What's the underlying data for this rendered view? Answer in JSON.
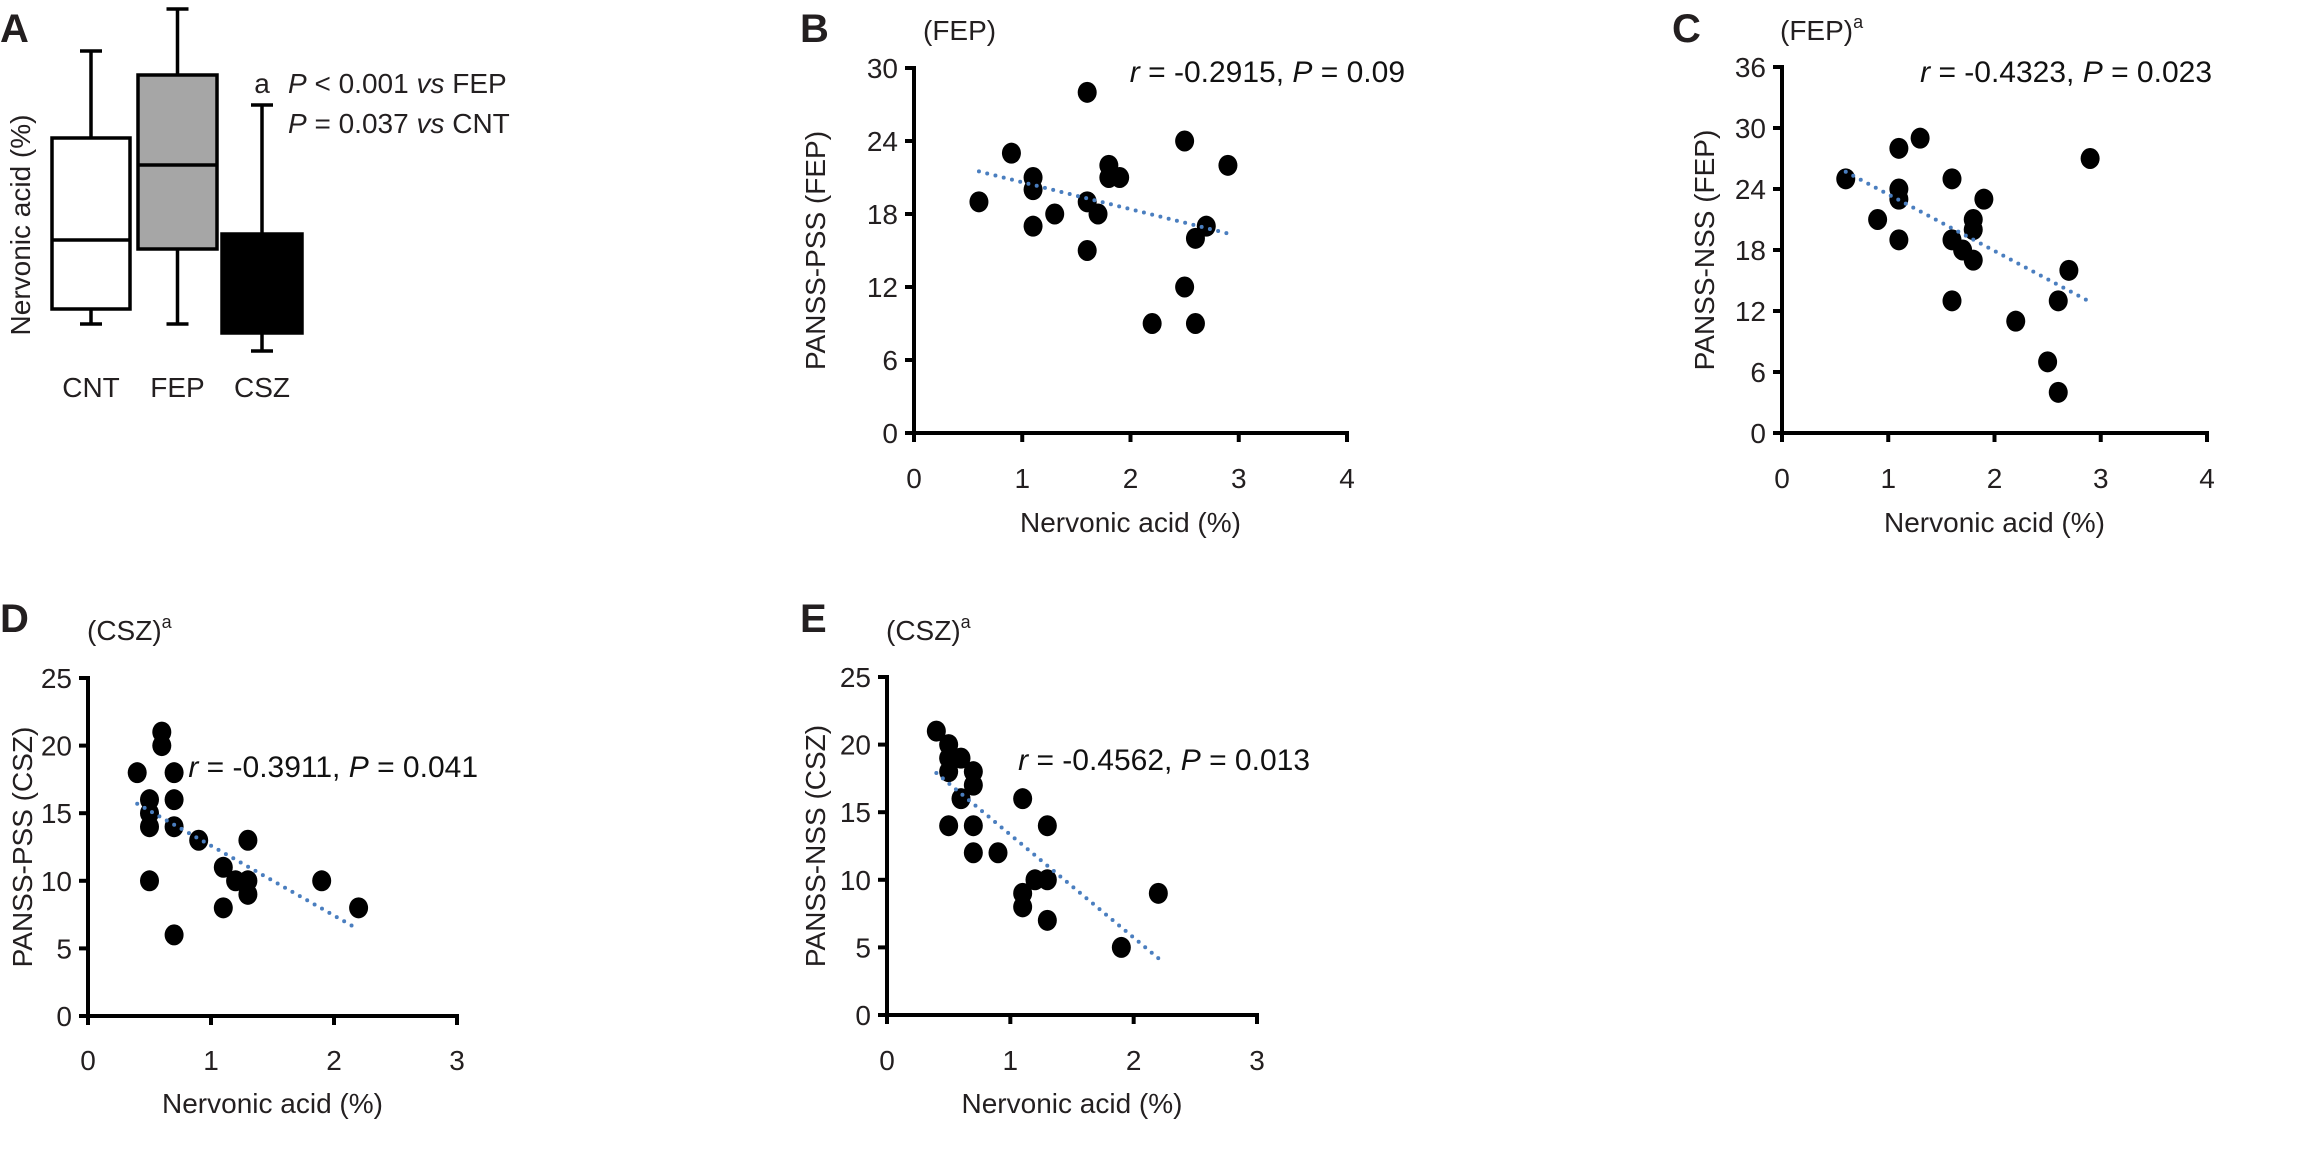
{
  "chart_data": [
    {
      "panel": "A",
      "type": "box",
      "ylabel": "Nervonic acid (%)",
      "categories": [
        "CNT",
        "FEP",
        "CSZ"
      ],
      "boxes": [
        {
          "name": "CNT",
          "min": 1.2,
          "q1": 1.7,
          "median": 4.0,
          "q3": 7.4,
          "max": 10.3,
          "fill": "#ffffff"
        },
        {
          "name": "FEP",
          "min": 1.2,
          "q1": 3.7,
          "median": 6.5,
          "q3": 9.5,
          "max": 11.7,
          "fill": "#a6a6a6"
        },
        {
          "name": "CSZ",
          "min": 0.3,
          "q1": 0.9,
          "median": 2.0,
          "q3": 4.2,
          "max": 8.5,
          "fill": "#000000"
        }
      ],
      "significance_mark": "a",
      "annotations": [
        [
          {
            "text": "P",
            "italic": true
          },
          {
            "text": " < 0.001 "
          },
          {
            "text": "vs",
            "italic": true
          },
          {
            "text": " FEP"
          }
        ],
        [
          {
            "text": "P",
            "italic": true
          },
          {
            "text": " = 0.037 "
          },
          {
            "text": "vs",
            "italic": true
          },
          {
            "text": " CNT"
          }
        ]
      ]
    },
    {
      "panel": "B",
      "type": "scatter",
      "title": "(FEP)",
      "title_sup": "",
      "xlabel": "Nervonic acid (%)",
      "ylabel": "PANSS-PSS (FEP)",
      "xlim": [
        0,
        4
      ],
      "ylim": [
        0,
        30
      ],
      "xticks": [
        0,
        1,
        2,
        3,
        4
      ],
      "yticks": [
        0,
        6,
        12,
        18,
        24,
        30
      ],
      "points": [
        [
          1.6,
          28
        ],
        [
          0.9,
          23
        ],
        [
          2.5,
          24
        ],
        [
          2.9,
          22
        ],
        [
          1.8,
          22
        ],
        [
          1.1,
          21
        ],
        [
          1.8,
          21
        ],
        [
          1.9,
          21
        ],
        [
          1.1,
          20
        ],
        [
          0.6,
          19
        ],
        [
          1.6,
          19
        ],
        [
          1.3,
          18
        ],
        [
          1.7,
          18
        ],
        [
          1.1,
          17
        ],
        [
          2.7,
          17
        ],
        [
          2.6,
          16
        ],
        [
          1.6,
          15
        ],
        [
          2.5,
          12
        ],
        [
          2.2,
          9
        ],
        [
          2.6,
          9
        ]
      ],
      "trendline": [
        [
          0.6,
          21.5
        ],
        [
          2.9,
          16.4
        ]
      ],
      "stats": [
        {
          "text": "r",
          "italic": true
        },
        {
          "text": " = -0.2915, "
        },
        {
          "text": "P",
          "italic": true
        },
        {
          "text": " = 0.09"
        }
      ]
    },
    {
      "panel": "C",
      "type": "scatter",
      "title": "(FEP)",
      "title_sup": "a",
      "xlabel": "Nervonic acid (%)",
      "ylabel": "PANSS-NSS (FEP)",
      "xlim": [
        0,
        4
      ],
      "ylim": [
        0,
        36
      ],
      "xticks": [
        0,
        1,
        2,
        3,
        4
      ],
      "yticks": [
        0,
        6,
        12,
        18,
        24,
        30,
        36
      ],
      "points": [
        [
          0.6,
          25
        ],
        [
          1.1,
          28
        ],
        [
          1.3,
          29
        ],
        [
          1.1,
          24
        ],
        [
          1.1,
          23
        ],
        [
          0.9,
          21
        ],
        [
          1.1,
          19
        ],
        [
          1.6,
          25
        ],
        [
          1.9,
          23
        ],
        [
          1.8,
          21
        ],
        [
          1.8,
          20
        ],
        [
          1.6,
          19
        ],
        [
          1.7,
          18
        ],
        [
          1.8,
          17
        ],
        [
          1.6,
          13
        ],
        [
          2.2,
          11
        ],
        [
          2.6,
          13
        ],
        [
          2.7,
          16
        ],
        [
          2.9,
          27
        ],
        [
          2.5,
          7
        ],
        [
          2.6,
          4
        ]
      ],
      "trendline": [
        [
          0.6,
          25.7
        ],
        [
          2.9,
          12.9
        ]
      ],
      "stats": [
        {
          "text": "r",
          "italic": true
        },
        {
          "text": " = -0.4323, "
        },
        {
          "text": "P",
          "italic": true
        },
        {
          "text": " = 0.023"
        }
      ]
    },
    {
      "panel": "D",
      "type": "scatter",
      "title": "(CSZ)",
      "title_sup": "a",
      "xlabel": "Nervonic acid (%)",
      "ylabel": "PANSS-PSS (CSZ)",
      "xlim": [
        0,
        3
      ],
      "ylim": [
        0,
        25
      ],
      "xticks": [
        0,
        1,
        2,
        3
      ],
      "yticks": [
        0,
        5,
        10,
        15,
        20,
        25
      ],
      "points": [
        [
          0.4,
          18
        ],
        [
          0.6,
          21
        ],
        [
          0.6,
          20
        ],
        [
          0.7,
          18
        ],
        [
          0.5,
          16
        ],
        [
          0.7,
          16
        ],
        [
          0.5,
          15
        ],
        [
          0.5,
          14
        ],
        [
          0.7,
          14
        ],
        [
          0.9,
          13
        ],
        [
          1.3,
          13
        ],
        [
          1.1,
          11
        ],
        [
          1.2,
          10
        ],
        [
          1.3,
          10
        ],
        [
          1.3,
          9
        ],
        [
          1.1,
          8
        ],
        [
          0.5,
          10
        ],
        [
          0.7,
          6
        ],
        [
          1.9,
          10
        ],
        [
          2.2,
          8
        ]
      ],
      "trendline": [
        [
          0.4,
          15.7
        ],
        [
          2.2,
          6.4
        ]
      ],
      "stats": [
        {
          "text": "r",
          "italic": true
        },
        {
          "text": " = -0.3911, "
        },
        {
          "text": "P",
          "italic": true
        },
        {
          "text": " = 0.041"
        }
      ]
    },
    {
      "panel": "E",
      "type": "scatter",
      "title": "(CSZ)",
      "title_sup": "a",
      "xlabel": "Nervonic acid (%)",
      "ylabel": "PANSS-NSS (CSZ)",
      "xlim": [
        0,
        3
      ],
      "ylim": [
        0,
        25
      ],
      "xticks": [
        0,
        1,
        2,
        3
      ],
      "yticks": [
        0,
        5,
        10,
        15,
        20,
        25
      ],
      "points": [
        [
          0.4,
          21
        ],
        [
          0.5,
          20
        ],
        [
          0.5,
          19
        ],
        [
          0.6,
          19
        ],
        [
          0.5,
          18
        ],
        [
          0.7,
          18
        ],
        [
          0.7,
          17
        ],
        [
          0.6,
          16
        ],
        [
          0.5,
          14
        ],
        [
          0.7,
          14
        ],
        [
          0.7,
          12
        ],
        [
          0.9,
          12
        ],
        [
          1.1,
          16
        ],
        [
          1.3,
          14
        ],
        [
          1.2,
          10
        ],
        [
          1.3,
          10
        ],
        [
          1.1,
          9
        ],
        [
          1.1,
          8
        ],
        [
          1.3,
          7
        ],
        [
          1.9,
          5
        ],
        [
          2.2,
          9
        ]
      ],
      "trendline": [
        [
          0.4,
          17.9
        ],
        [
          2.2,
          4.2
        ]
      ],
      "stats": [
        {
          "text": "r",
          "italic": true
        },
        {
          "text": " = -0.4562, "
        },
        {
          "text": "P",
          "italic": true
        },
        {
          "text": " = 0.013"
        }
      ]
    }
  ],
  "colors": {
    "trendline": "#4a7ebf",
    "points": "#000000",
    "axis": "#000000"
  }
}
